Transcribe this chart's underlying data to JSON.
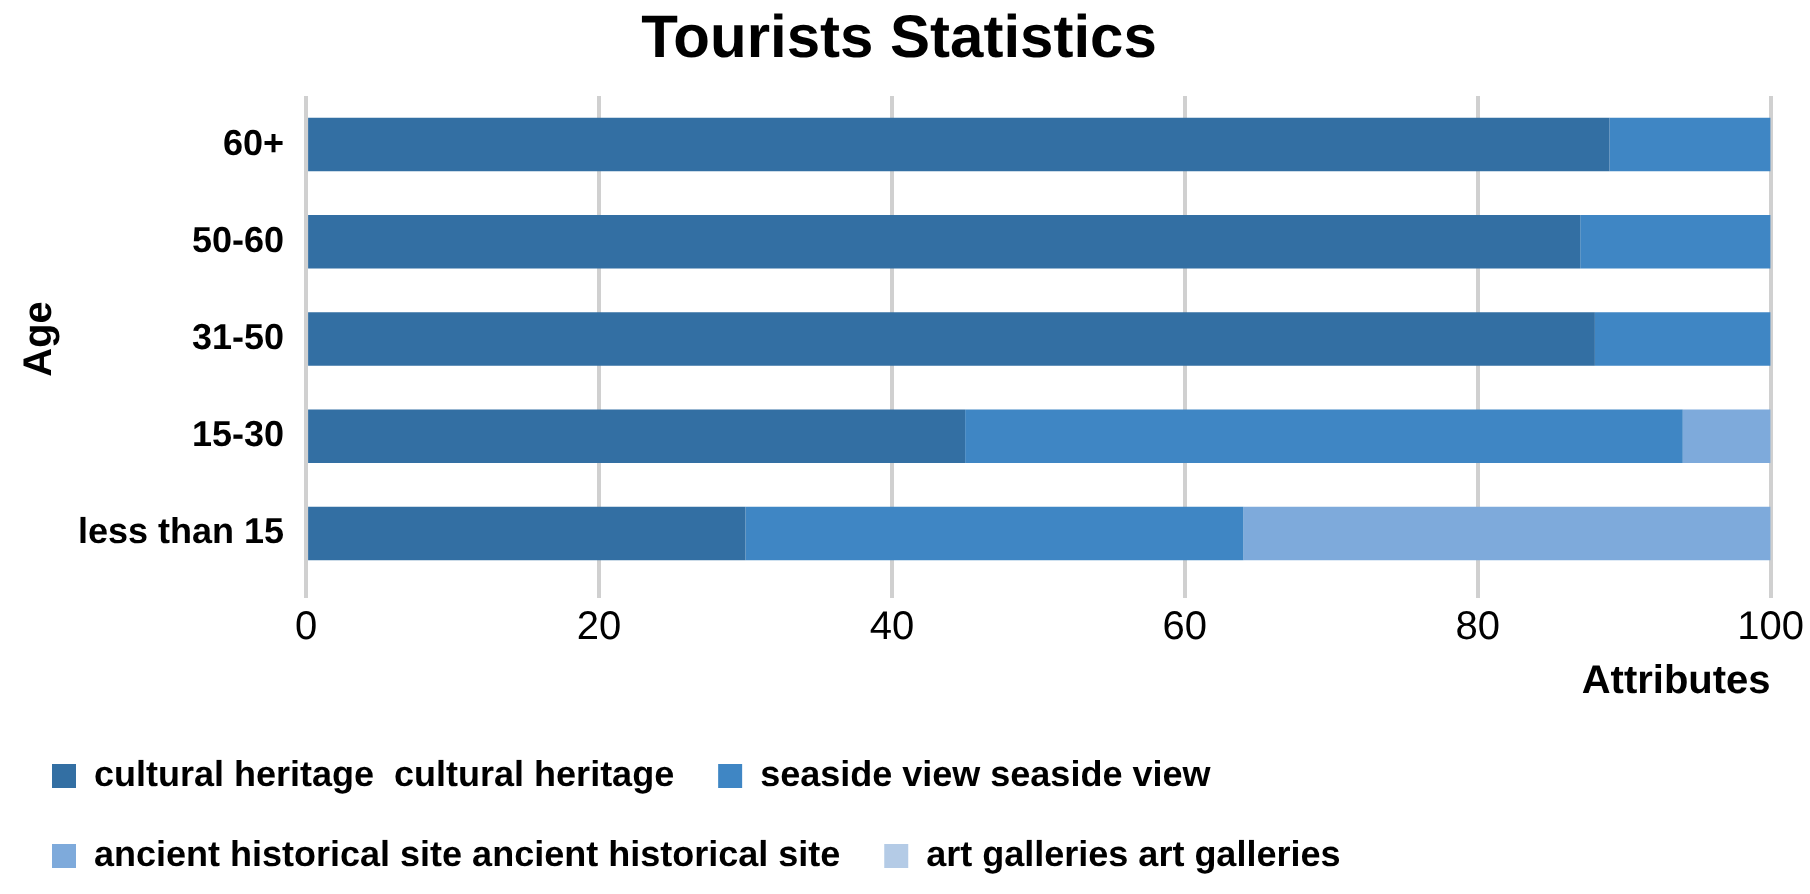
{
  "chart_data": {
    "type": "bar",
    "orientation": "horizontal",
    "stacked": true,
    "title": "Tourists Statistics",
    "xlabel": "Attributes",
    "ylabel": "Age",
    "categories": [
      "60+",
      "50-60",
      "31-50",
      "15-30",
      "less than 15"
    ],
    "series": [
      {
        "name": "cultural heritage  cultural heritage",
        "color": "#336fa3",
        "values": [
          89,
          87,
          88,
          45,
          30
        ]
      },
      {
        "name": "seaside view seaside view",
        "color": "#3f86c4",
        "values": [
          11,
          13,
          12,
          49,
          34
        ]
      },
      {
        "name": "ancient historical site ancient historical site",
        "color": "#7eaadb",
        "values": [
          0,
          0,
          0,
          6,
          36
        ]
      },
      {
        "name": "art galleries art galleries",
        "color": "#b4cbe6",
        "values": [
          0,
          0,
          0,
          0,
          0
        ]
      }
    ],
    "xlim": [
      0,
      100
    ],
    "xticks": [
      0,
      20,
      40,
      60,
      80,
      100
    ],
    "grid": "x",
    "legend": "bottom"
  }
}
